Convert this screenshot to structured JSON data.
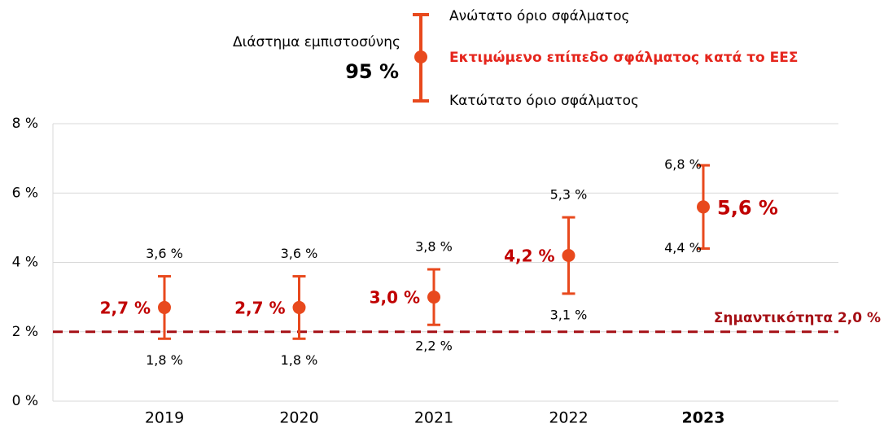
{
  "chart_data": {
    "type": "errorbar",
    "legend_title": "Διάστημα εμπιστοσύνης",
    "legend_subtitle": "95 %",
    "legend_upper": "Ανώτατο όριο σφάλματος",
    "legend_point": "Εκτιμώμενο επίπεδο σφάλματος κατά το ΕΕΣ",
    "legend_lower": "Κατώτατο όριο σφάλματος",
    "categories": [
      "2019",
      "2020",
      "2021",
      "2022",
      "2023"
    ],
    "values": [
      2.7,
      2.7,
      3.0,
      4.2,
      5.6
    ],
    "value_labels": [
      "2,7 %",
      "2,7 %",
      "3,0 %",
      "4,2 %",
      "5,6 %"
    ],
    "upper": [
      3.6,
      3.6,
      3.8,
      5.3,
      6.8
    ],
    "upper_labels": [
      "3,6 %",
      "3,6 %",
      "3,8 %",
      "5,3 %",
      "6,8 %"
    ],
    "lower": [
      1.8,
      1.8,
      2.2,
      3.1,
      4.4
    ],
    "lower_labels": [
      "1,8 %",
      "1,8 %",
      "2,2 %",
      "3,1 %",
      "4,4 %"
    ],
    "color": "#e8491d",
    "label_color": "#c00000",
    "threshold": {
      "value": 2.0,
      "label": "Σημαντικότητα 2,0 %",
      "color": "#a50f15"
    },
    "ylim": [
      0,
      8
    ],
    "yticks": [
      {
        "value": 0,
        "label": "0 %"
      },
      {
        "value": 2,
        "label": "2 %"
      },
      {
        "value": 4,
        "label": "4 %"
      },
      {
        "value": 6,
        "label": "6 %"
      },
      {
        "value": 8,
        "label": "8 %"
      }
    ],
    "grid": true
  }
}
